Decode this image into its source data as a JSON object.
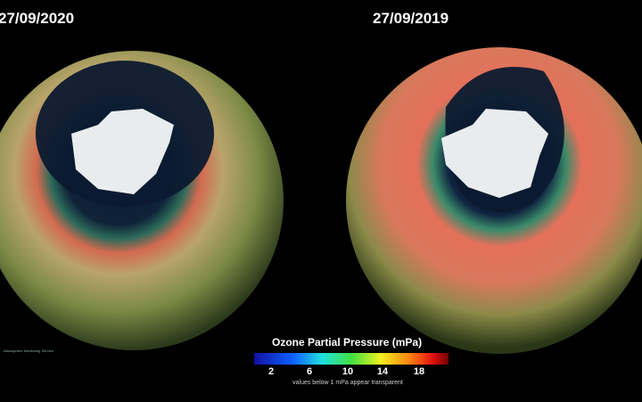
{
  "panels": [
    {
      "date": "27/09/2020"
    },
    {
      "date": "27/09/2019"
    }
  ],
  "colorbar": {
    "title": "Ozone Partial Pressure (mPa)",
    "ticks": [
      2,
      6,
      10,
      14,
      18
    ],
    "note": "values below 1 mPa appear transparent"
  },
  "logo": {
    "text": "Atmosphere Monitoring Service"
  }
}
